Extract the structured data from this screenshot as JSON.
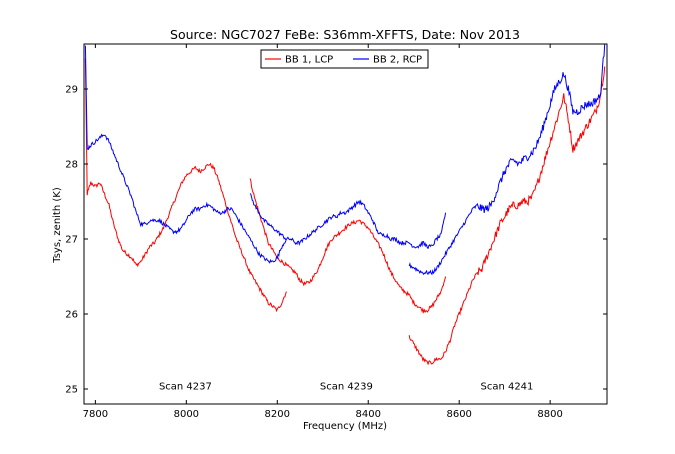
{
  "chart_data": {
    "type": "line",
    "title": "Source: NGC7027 FeBe: S36mm-XFFTS, Date: Nov 2013",
    "xlabel": "Frequency (MHz)",
    "ylabel": "Tsys, zenith (K)",
    "xlim": [
      7775,
      8925
    ],
    "ylim": [
      24.8,
      29.6
    ],
    "xticks": [
      7800,
      8000,
      8200,
      8400,
      8600,
      8800
    ],
    "yticks": [
      25,
      26,
      27,
      28,
      29
    ],
    "grid": false,
    "legend_position": "top-center",
    "annotations": [
      {
        "text": "Scan 4237",
        "x": 7998,
        "y": 25.05
      },
      {
        "text": "Scan 4239",
        "x": 8352,
        "y": 25.05
      },
      {
        "text": "Scan 4241",
        "x": 8705,
        "y": 25.05
      }
    ],
    "series": [
      {
        "name": "BB 1, LCP",
        "color": "#ff0000",
        "segments": [
          {
            "x": [
              7778,
              7782,
              7790,
              7800,
              7810,
              7820,
              7830,
              7840,
              7850,
              7860,
              7870,
              7880,
              7890,
              7900,
              7910,
              7920,
              7930,
              7940,
              7950,
              7960,
              7970,
              7980,
              7990,
              8000,
              8010,
              8020,
              8030,
              8040,
              8050,
              8060,
              8070,
              8080,
              8090,
              8100,
              8110,
              8120,
              8130,
              8140,
              8150,
              8160,
              8170,
              8180,
              8190,
              8200,
              8210,
              8220
            ],
            "y": [
              29.4,
              27.6,
              27.75,
              27.7,
              27.75,
              27.6,
              27.45,
              27.2,
              27.0,
              26.85,
              26.8,
              26.75,
              26.65,
              26.7,
              26.8,
              26.9,
              26.95,
              27.05,
              27.15,
              27.3,
              27.45,
              27.6,
              27.75,
              27.85,
              27.9,
              27.95,
              27.9,
              27.95,
              28.0,
              27.95,
              27.8,
              27.6,
              27.4,
              27.2,
              27.0,
              26.85,
              26.7,
              26.55,
              26.45,
              26.35,
              26.25,
              26.15,
              26.1,
              26.05,
              26.15,
              26.3
            ]
          },
          {
            "x": [
              8140,
              8150,
              8160,
              8170,
              8180,
              8190,
              8200,
              8210,
              8220,
              8230,
              8240,
              8250,
              8260,
              8270,
              8280,
              8290,
              8300,
              8310,
              8320,
              8330,
              8340,
              8350,
              8360,
              8370,
              8380,
              8390,
              8400,
              8410,
              8420,
              8430,
              8440,
              8450,
              8460,
              8470,
              8480,
              8490,
              8500,
              8510,
              8520,
              8530,
              8540,
              8550,
              8560,
              8570
            ],
            "y": [
              27.8,
              27.55,
              27.35,
              27.15,
              26.95,
              26.85,
              26.75,
              26.7,
              26.65,
              26.6,
              26.55,
              26.45,
              26.4,
              26.42,
              26.5,
              26.6,
              26.75,
              26.9,
              27.0,
              27.05,
              27.1,
              27.15,
              27.2,
              27.22,
              27.25,
              27.2,
              27.15,
              27.05,
              26.95,
              26.85,
              26.7,
              26.55,
              26.45,
              26.35,
              26.3,
              26.25,
              26.15,
              26.1,
              26.05,
              26.05,
              26.1,
              26.2,
              26.3,
              26.5
            ]
          },
          {
            "x": [
              8490,
              8500,
              8510,
              8520,
              8530,
              8540,
              8550,
              8560,
              8570,
              8580,
              8590,
              8600,
              8610,
              8620,
              8630,
              8640,
              8650,
              8660,
              8670,
              8680,
              8690,
              8700,
              8710,
              8720,
              8730,
              8740,
              8750,
              8760,
              8770,
              8780,
              8790,
              8800,
              8810,
              8820,
              8830,
              8840,
              8850,
              8860,
              8870,
              8880,
              8890,
              8900,
              8910,
              8920
            ],
            "y": [
              25.7,
              25.6,
              25.5,
              25.4,
              25.35,
              25.35,
              25.4,
              25.4,
              25.5,
              25.65,
              25.85,
              26.0,
              26.15,
              26.3,
              26.45,
              26.55,
              26.6,
              26.75,
              26.9,
              27.05,
              27.2,
              27.3,
              27.4,
              27.45,
              27.45,
              27.5,
              27.5,
              27.55,
              27.7,
              27.9,
              28.1,
              28.3,
              28.5,
              28.7,
              28.9,
              28.6,
              28.2,
              28.3,
              28.4,
              28.5,
              28.6,
              28.7,
              28.9,
              29.3
            ]
          }
        ]
      },
      {
        "name": "BB 2, RCP",
        "color": "#0000ff",
        "segments": [
          {
            "x": [
              7778,
              7782,
              7790,
              7800,
              7810,
              7820,
              7830,
              7840,
              7850,
              7860,
              7870,
              7880,
              7890,
              7900,
              7910,
              7920,
              7930,
              7940,
              7950,
              7960,
              7970,
              7980,
              7990,
              8000,
              8010,
              8020,
              8030,
              8040,
              8050,
              8060,
              8070,
              8080,
              8090,
              8100,
              8110,
              8120,
              8130,
              8140,
              8150,
              8160,
              8170,
              8180,
              8190,
              8200,
              8210,
              8220
            ],
            "y": [
              29.6,
              28.2,
              28.25,
              28.3,
              28.35,
              28.4,
              28.3,
              28.15,
              28.0,
              27.85,
              27.7,
              27.55,
              27.35,
              27.2,
              27.2,
              27.25,
              27.25,
              27.25,
              27.2,
              27.15,
              27.1,
              27.1,
              27.15,
              27.25,
              27.35,
              27.4,
              27.4,
              27.45,
              27.45,
              27.4,
              27.35,
              27.35,
              27.4,
              27.4,
              27.3,
              27.2,
              27.1,
              27.0,
              26.9,
              26.8,
              26.75,
              26.7,
              26.7,
              26.75,
              26.9,
              27.0
            ]
          },
          {
            "x": [
              8140,
              8150,
              8160,
              8170,
              8180,
              8190,
              8200,
              8210,
              8220,
              8230,
              8240,
              8250,
              8260,
              8270,
              8280,
              8290,
              8300,
              8310,
              8320,
              8330,
              8340,
              8350,
              8360,
              8370,
              8380,
              8390,
              8400,
              8410,
              8420,
              8430,
              8440,
              8450,
              8460,
              8470,
              8480,
              8490,
              8500,
              8510,
              8520,
              8530,
              8540,
              8550,
              8560,
              8570
            ],
            "y": [
              27.6,
              27.45,
              27.35,
              27.25,
              27.2,
              27.15,
              27.1,
              27.05,
              27.0,
              27.0,
              26.95,
              26.95,
              27.0,
              27.05,
              27.1,
              27.15,
              27.2,
              27.25,
              27.3,
              27.3,
              27.35,
              27.35,
              27.4,
              27.45,
              27.5,
              27.45,
              27.35,
              27.25,
              27.1,
              27.05,
              27.05,
              27.0,
              27.0,
              26.95,
              26.95,
              26.95,
              26.9,
              26.9,
              26.95,
              26.9,
              26.9,
              27.0,
              27.05,
              27.35
            ]
          },
          {
            "x": [
              8490,
              8500,
              8510,
              8520,
              8530,
              8540,
              8550,
              8560,
              8570,
              8580,
              8590,
              8600,
              8610,
              8620,
              8630,
              8640,
              8650,
              8660,
              8670,
              8680,
              8690,
              8700,
              8710,
              8720,
              8730,
              8740,
              8750,
              8760,
              8770,
              8780,
              8790,
              8800,
              8810,
              8820,
              8830,
              8840,
              8850,
              8860,
              8870,
              8880,
              8890,
              8900,
              8910,
              8920
            ],
            "y": [
              26.65,
              26.62,
              26.58,
              26.55,
              26.55,
              26.55,
              26.6,
              26.7,
              26.8,
              26.9,
              27.0,
              27.1,
              27.2,
              27.3,
              27.4,
              27.45,
              27.4,
              27.4,
              27.45,
              27.6,
              27.75,
              27.9,
              28.0,
              28.05,
              28.0,
              28.05,
              28.1,
              28.15,
              28.25,
              28.4,
              28.6,
              28.8,
              29.0,
              29.1,
              29.2,
              29.0,
              28.7,
              28.7,
              28.75,
              28.8,
              28.8,
              28.85,
              28.9,
              29.6
            ]
          }
        ]
      }
    ]
  }
}
